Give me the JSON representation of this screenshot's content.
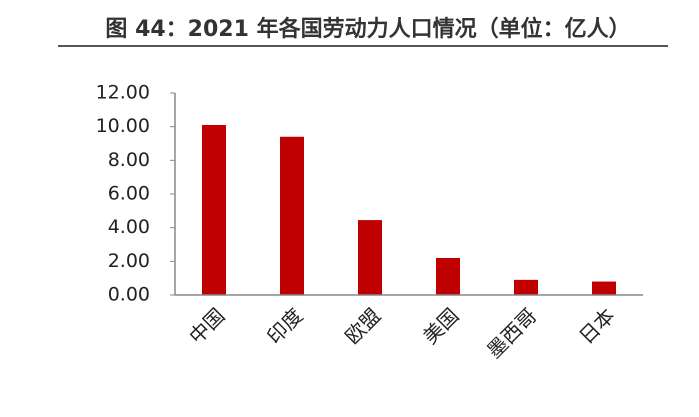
{
  "chart_data": {
    "type": "bar",
    "title": "图 44：2021 年各国劳动力人口情况（单位：亿人）",
    "categories": [
      "中国",
      "印度",
      "欧盟",
      "美国",
      "墨西哥",
      "日本"
    ],
    "values": [
      10.1,
      9.4,
      4.45,
      2.2,
      0.9,
      0.8
    ],
    "color": "#c00000",
    "ylim": [
      0,
      12
    ],
    "yticks": [
      {
        "value": 0,
        "label": "0.00"
      },
      {
        "value": 2,
        "label": "2.00"
      },
      {
        "value": 4,
        "label": "4.00"
      },
      {
        "value": 6,
        "label": "6.00"
      },
      {
        "value": 8,
        "label": "8.00"
      },
      {
        "value": 10,
        "label": "10.00"
      },
      {
        "value": 12,
        "label": "12.00"
      }
    ],
    "grid": false
  }
}
